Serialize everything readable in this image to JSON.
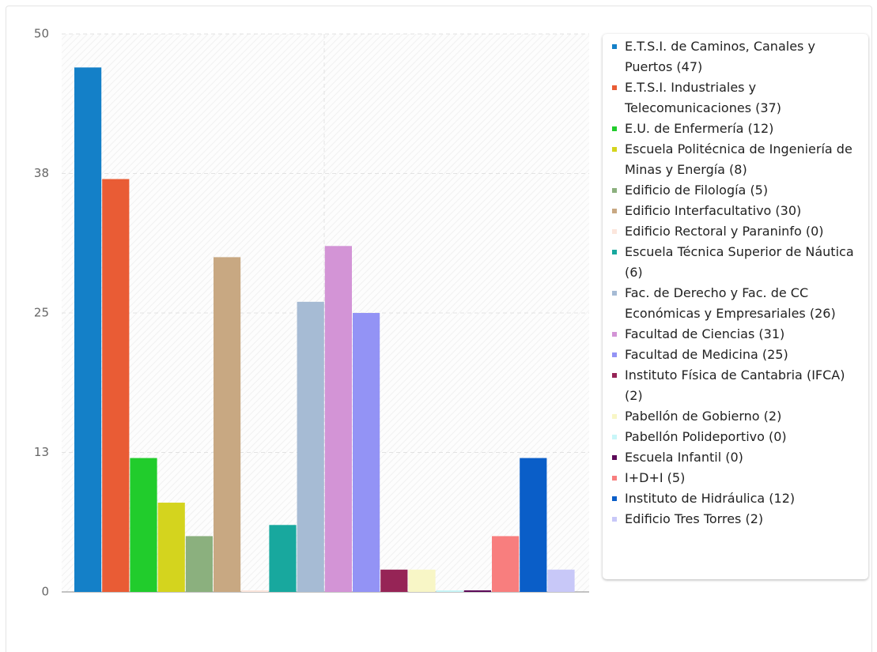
{
  "chart_data": {
    "type": "bar",
    "categories": [
      "E.T.S.I. de Caminos, Canales y Puertos (47)",
      "E.T.S.I. Industriales y Telecomunicaciones (37)",
      "E.U. de Enfermería (12)",
      "Escuela Politécnica de Ingeniería de Minas y Energía (8)",
      "Edificio de Filología (5)",
      "Edificio Interfacultativo (30)",
      "Edificio Rectoral y Paraninfo (0)",
      "Escuela Técnica Superior de Náutica (6)",
      "Fac. de Derecho y Fac. de CC Económicas y Empresariales (26)",
      "Facultad de Ciencias (31)",
      "Facultad de Medicina (25)",
      "Instituto Física de Cantabria (IFCA) (2)",
      "Pabellón de Gobierno (2)",
      "Pabellón Polideportivo (0)",
      "Escuela Infantil (0)",
      "I+D+I (5)",
      "Instituto de Hidráulica (12)",
      "Edificio Tres Torres (2)"
    ],
    "values": [
      47,
      37,
      12,
      8,
      5,
      30,
      0,
      6,
      26,
      31,
      25,
      2,
      2,
      0,
      0,
      5,
      12,
      2
    ],
    "colors": [
      "#1480c8",
      "#e95c35",
      "#21cc2c",
      "#d4d41e",
      "#8bb07e",
      "#c8a882",
      "#fce6dc",
      "#18a89e",
      "#a6bbd4",
      "#d394d6",
      "#9393f5",
      "#962456",
      "#f8f6c6",
      "#c8f6f8",
      "#5c0a58",
      "#f87e7e",
      "#0a5ec8",
      "#c8c8f8"
    ],
    "ylim": [
      0,
      50
    ],
    "yticks": [
      0,
      {
        "value": 12.5,
        "label": "13"
      },
      25,
      {
        "value": 37.5,
        "label": "38"
      },
      50
    ],
    "grid": true
  }
}
